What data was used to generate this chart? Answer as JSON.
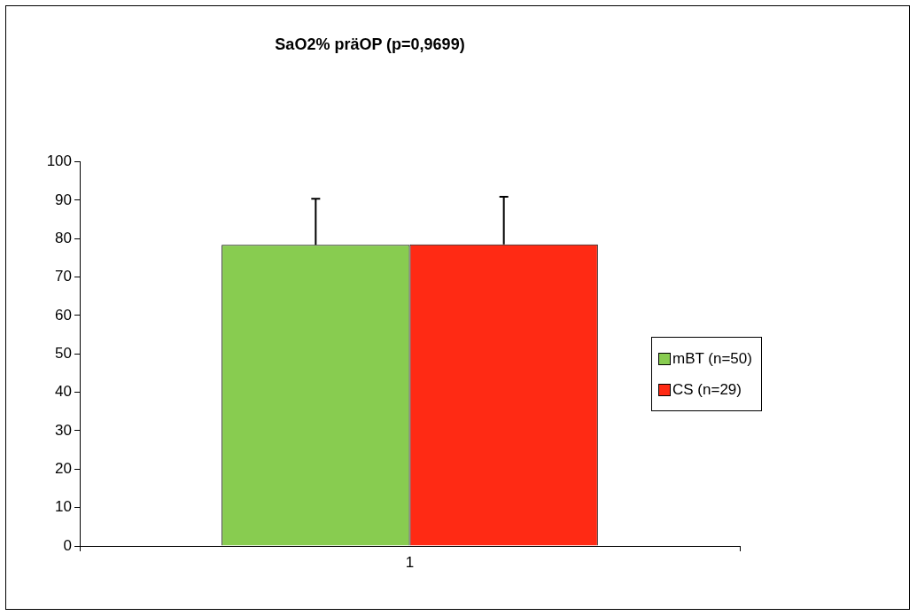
{
  "chart_data": {
    "type": "bar",
    "title": "SaO2% präOP (p=0,9699)",
    "categories": [
      "1"
    ],
    "series": [
      {
        "name": "mBT (n=50)",
        "color": "#88cc50",
        "values": [
          78.4
        ],
        "errors": [
          [
            78.4,
            90.4
          ]
        ]
      },
      {
        "name": "CS (n=29)",
        "color": "#ff2a14",
        "values": [
          78.5
        ],
        "errors": [
          [
            78.5,
            90.9
          ]
        ]
      }
    ],
    "ylim": [
      0,
      100
    ],
    "yticks": [
      0,
      10,
      20,
      30,
      40,
      50,
      60,
      70,
      80,
      90,
      100
    ],
    "grid": false,
    "legend": "right"
  }
}
